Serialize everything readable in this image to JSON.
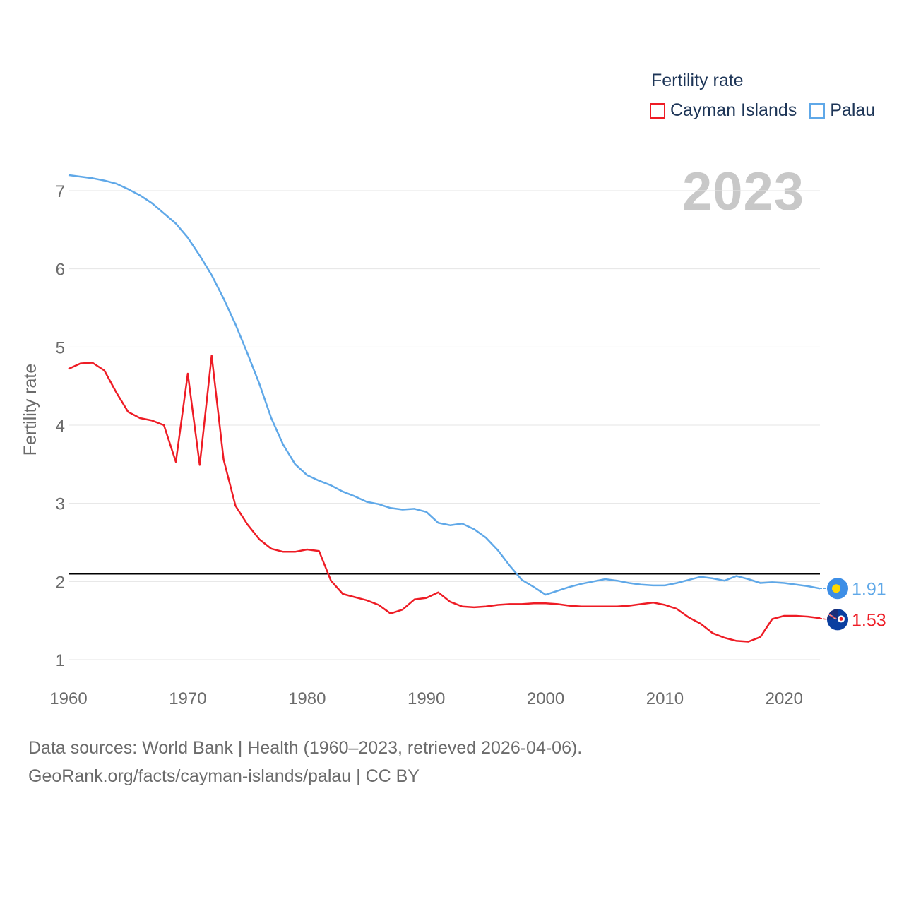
{
  "legend": {
    "title": "Fertility rate",
    "items": [
      {
        "label": "Cayman Islands",
        "color": "#ee1c25"
      },
      {
        "label": "Palau",
        "color": "#5fa8e8"
      }
    ]
  },
  "year_badge": "2023",
  "footer": {
    "line1": "Data sources: World Bank | Health (1960–2023, retrieved 2026-04-06).",
    "line2": "GeoRank.org/facts/cayman-islands/palau | CC BY"
  },
  "chart_data": {
    "type": "line",
    "title": "Fertility rate",
    "xlabel": "",
    "ylabel": "Fertility rate",
    "xlim": [
      1960,
      2023
    ],
    "ylim": [
      0.7,
      7.3
    ],
    "x_ticks": [
      1960,
      1970,
      1980,
      1990,
      2000,
      2010,
      2020
    ],
    "y_ticks": [
      1,
      2,
      3,
      4,
      5,
      6,
      7
    ],
    "grid": true,
    "reference_line": {
      "value": 2.1,
      "color": "#000000"
    },
    "x": [
      1960,
      1961,
      1962,
      1963,
      1964,
      1965,
      1966,
      1967,
      1968,
      1969,
      1970,
      1971,
      1972,
      1973,
      1974,
      1975,
      1976,
      1977,
      1978,
      1979,
      1980,
      1981,
      1982,
      1983,
      1984,
      1985,
      1986,
      1987,
      1988,
      1989,
      1990,
      1991,
      1992,
      1993,
      1994,
      1995,
      1996,
      1997,
      1998,
      1999,
      2000,
      2001,
      2002,
      2003,
      2004,
      2005,
      2006,
      2007,
      2008,
      2009,
      2010,
      2011,
      2012,
      2013,
      2014,
      2015,
      2016,
      2017,
      2018,
      2019,
      2020,
      2021,
      2022,
      2023
    ],
    "series": [
      {
        "name": "Palau",
        "color": "#5fa8e8",
        "end_label": "1.91",
        "values": [
          7.2,
          7.18,
          7.16,
          7.13,
          7.09,
          7.02,
          6.94,
          6.84,
          6.71,
          6.58,
          6.4,
          6.17,
          5.92,
          5.62,
          5.29,
          4.92,
          4.53,
          4.09,
          3.75,
          3.5,
          3.36,
          3.29,
          3.23,
          3.15,
          3.09,
          3.02,
          2.99,
          2.94,
          2.92,
          2.93,
          2.89,
          2.75,
          2.72,
          2.74,
          2.67,
          2.56,
          2.4,
          2.2,
          2.02,
          1.93,
          1.83,
          1.88,
          1.93,
          1.97,
          2.0,
          2.03,
          2.01,
          1.98,
          1.96,
          1.95,
          1.95,
          1.98,
          2.02,
          2.06,
          2.04,
          2.01,
          2.07,
          2.03,
          1.98,
          1.99,
          1.98,
          1.96,
          1.94,
          1.91
        ]
      },
      {
        "name": "Cayman Islands",
        "color": "#ee1c25",
        "end_label": "1.53",
        "values": [
          4.72,
          4.79,
          4.8,
          4.7,
          4.42,
          4.17,
          4.09,
          4.06,
          4.0,
          3.53,
          4.66,
          3.49,
          4.89,
          3.56,
          2.97,
          2.73,
          2.54,
          2.42,
          2.38,
          2.38,
          2.41,
          2.39,
          2.01,
          1.84,
          1.8,
          1.76,
          1.7,
          1.59,
          1.64,
          1.77,
          1.79,
          1.86,
          1.74,
          1.68,
          1.67,
          1.68,
          1.7,
          1.71,
          1.71,
          1.72,
          1.72,
          1.71,
          1.69,
          1.68,
          1.68,
          1.68,
          1.68,
          1.69,
          1.71,
          1.73,
          1.7,
          1.65,
          1.54,
          1.46,
          1.34,
          1.28,
          1.24,
          1.23,
          1.29,
          1.52,
          1.56,
          1.56,
          1.55,
          1.53
        ]
      }
    ]
  }
}
